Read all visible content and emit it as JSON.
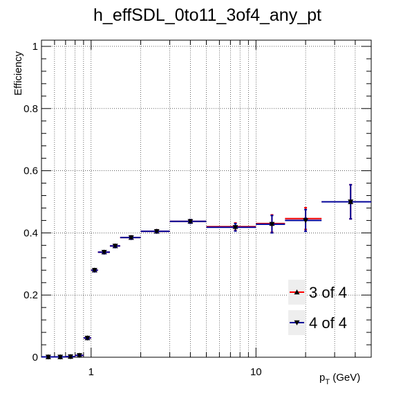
{
  "chart_data": {
    "type": "scatter",
    "title": "h_effSDL_0to11_3of4_any_pt",
    "ylabel": "Efficiency",
    "xlabel_main": "p",
    "xlabel_sub": "T",
    "xlabel_unit": " (GeV)",
    "xscale": "log",
    "xlim": [
      0.5,
      50
    ],
    "ylim": [
      0,
      1.02
    ],
    "grid": true,
    "legend_position": "bottom-right",
    "x_ticks": [
      {
        "value": 1,
        "label": "1"
      },
      {
        "value": 10,
        "label": "10"
      }
    ],
    "y_ticks": [
      {
        "value": 0,
        "label": "0"
      },
      {
        "value": 0.2,
        "label": "0.2"
      },
      {
        "value": 0.4,
        "label": "0.4"
      },
      {
        "value": 0.6,
        "label": "0.6"
      },
      {
        "value": 0.8,
        "label": "0.8"
      },
      {
        "value": 1,
        "label": "1"
      }
    ],
    "series": [
      {
        "name": "3 of 4",
        "color": "#ff0000",
        "marker": "triangle-up",
        "points": [
          {
            "x": 0.55,
            "xlo": 0.5,
            "xhi": 0.6,
            "y": 0.001,
            "yerr": 0.001
          },
          {
            "x": 0.65,
            "xlo": 0.6,
            "xhi": 0.7,
            "y": 0.001,
            "yerr": 0.001
          },
          {
            "x": 0.75,
            "xlo": 0.7,
            "xhi": 0.8,
            "y": 0.002,
            "yerr": 0.001
          },
          {
            "x": 0.85,
            "xlo": 0.8,
            "xhi": 0.9,
            "y": 0.006,
            "yerr": 0.002
          },
          {
            "x": 0.95,
            "xlo": 0.9,
            "xhi": 1.0,
            "y": 0.062,
            "yerr": 0.004
          },
          {
            "x": 1.05,
            "xlo": 1.0,
            "xhi": 1.1,
            "y": 0.28,
            "yerr": 0.005
          },
          {
            "x": 1.2,
            "xlo": 1.1,
            "xhi": 1.3,
            "y": 0.338,
            "yerr": 0.005
          },
          {
            "x": 1.4,
            "xlo": 1.3,
            "xhi": 1.5,
            "y": 0.358,
            "yerr": 0.005
          },
          {
            "x": 1.75,
            "xlo": 1.5,
            "xhi": 2.0,
            "y": 0.385,
            "yerr": 0.005
          },
          {
            "x": 2.5,
            "xlo": 2.0,
            "xhi": 3.0,
            "y": 0.405,
            "yerr": 0.005
          },
          {
            "x": 4.0,
            "xlo": 3.0,
            "xhi": 5.0,
            "y": 0.437,
            "yerr": 0.006
          },
          {
            "x": 7.5,
            "xlo": 5.0,
            "xhi": 10.0,
            "y": 0.42,
            "yerr": 0.012
          },
          {
            "x": 12.5,
            "xlo": 10.0,
            "xhi": 15.0,
            "y": 0.43,
            "yerr": 0.028
          },
          {
            "x": 20.0,
            "xlo": 15.0,
            "xhi": 25.0,
            "y": 0.446,
            "yerr": 0.035
          },
          {
            "x": 37.5,
            "xlo": 25.0,
            "xhi": 50.0,
            "y": 0.5,
            "yerr": 0.055
          }
        ]
      },
      {
        "name": "4 of 4",
        "color": "#000099",
        "marker": "triangle-down",
        "points": [
          {
            "x": 0.55,
            "xlo": 0.5,
            "xhi": 0.6,
            "y": 0.001,
            "yerr": 0.001
          },
          {
            "x": 0.65,
            "xlo": 0.6,
            "xhi": 0.7,
            "y": 0.001,
            "yerr": 0.001
          },
          {
            "x": 0.75,
            "xlo": 0.7,
            "xhi": 0.8,
            "y": 0.002,
            "yerr": 0.001
          },
          {
            "x": 0.85,
            "xlo": 0.8,
            "xhi": 0.9,
            "y": 0.006,
            "yerr": 0.002
          },
          {
            "x": 0.95,
            "xlo": 0.9,
            "xhi": 1.0,
            "y": 0.062,
            "yerr": 0.004
          },
          {
            "x": 1.05,
            "xlo": 1.0,
            "xhi": 1.1,
            "y": 0.28,
            "yerr": 0.005
          },
          {
            "x": 1.2,
            "xlo": 1.1,
            "xhi": 1.3,
            "y": 0.338,
            "yerr": 0.005
          },
          {
            "x": 1.4,
            "xlo": 1.3,
            "xhi": 1.5,
            "y": 0.358,
            "yerr": 0.005
          },
          {
            "x": 1.75,
            "xlo": 1.5,
            "xhi": 2.0,
            "y": 0.385,
            "yerr": 0.005
          },
          {
            "x": 2.5,
            "xlo": 2.0,
            "xhi": 3.0,
            "y": 0.405,
            "yerr": 0.005
          },
          {
            "x": 4.0,
            "xlo": 3.0,
            "xhi": 5.0,
            "y": 0.437,
            "yerr": 0.006
          },
          {
            "x": 7.5,
            "xlo": 5.0,
            "xhi": 10.0,
            "y": 0.418,
            "yerr": 0.012
          },
          {
            "x": 12.5,
            "xlo": 10.0,
            "xhi": 15.0,
            "y": 0.428,
            "yerr": 0.028
          },
          {
            "x": 20.0,
            "xlo": 15.0,
            "xhi": 25.0,
            "y": 0.44,
            "yerr": 0.035
          },
          {
            "x": 37.5,
            "xlo": 25.0,
            "xhi": 50.0,
            "y": 0.5,
            "yerr": 0.055
          }
        ]
      }
    ]
  }
}
